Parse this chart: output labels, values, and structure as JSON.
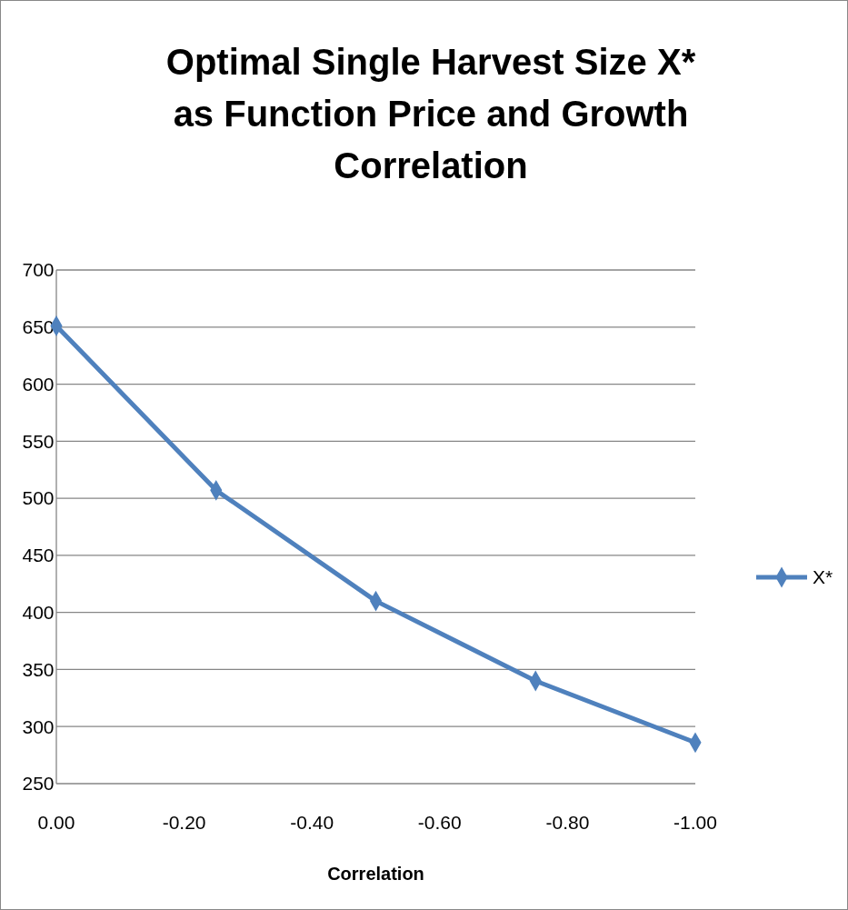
{
  "chart_data": {
    "type": "line",
    "title": "Optimal Single Harvest Size X* as Function Price and Growth Correlation",
    "xlabel": "Correlation",
    "x": [
      0,
      -0.25,
      -0.5,
      -0.75,
      -1
    ],
    "series": [
      {
        "name": "X*",
        "color": "#4f81bd",
        "values": [
          651,
          507,
          410,
          340,
          286
        ]
      }
    ],
    "xlim": [
      0,
      -1
    ],
    "xticks": [
      {
        "value": 0,
        "label": "0.00"
      },
      {
        "value": -0.2,
        "label": "-0.20"
      },
      {
        "value": -0.4,
        "label": "-0.40"
      },
      {
        "value": -0.6,
        "label": "-0.60"
      },
      {
        "value": -0.8,
        "label": "-0.80"
      },
      {
        "value": -1,
        "label": "-1.00"
      }
    ],
    "ylim": [
      250,
      700
    ],
    "yticks": [
      250,
      300,
      350,
      400,
      450,
      500,
      550,
      600,
      650,
      700
    ],
    "grid": "y",
    "legend": "right",
    "marker": "diamond",
    "line_style": "solid"
  }
}
